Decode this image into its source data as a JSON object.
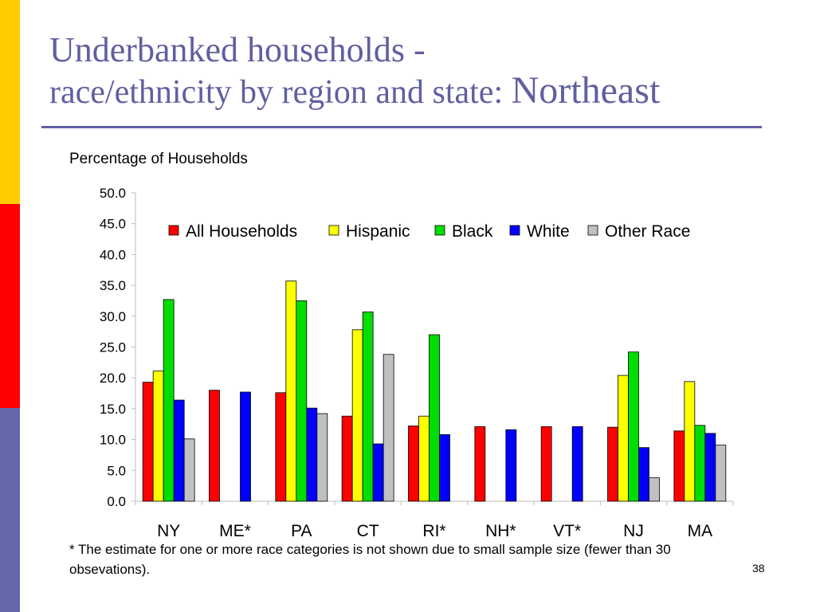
{
  "slide": {
    "title_line1": "Underbanked households -",
    "title_line2a": "race/ethnicity by region and state: ",
    "title_line2b": "Northeast",
    "footnote": "* The estimate for one or more race categories is not shown due to small sample size (fewer than 30 obsevations).",
    "page_number": "38"
  },
  "colors": {
    "accent_bar_top": "#FFCC00",
    "accent_bar_mid": "#FF0000",
    "accent_bar_bottom": "#6666AA",
    "title": "#5F5FA0"
  },
  "chart_data": {
    "type": "bar",
    "ylabel": "Percentage of Households",
    "ylim": [
      0,
      50
    ],
    "yticks": [
      "0.0",
      "5.0",
      "10.0",
      "15.0",
      "20.0",
      "25.0",
      "30.0",
      "35.0",
      "40.0",
      "45.0",
      "50.0"
    ],
    "categories": [
      "NY",
      "ME*",
      "PA",
      "CT",
      "RI*",
      "NH*",
      "VT*",
      "NJ",
      "MA"
    ],
    "legend_position": "top",
    "grid": false,
    "series": [
      {
        "name": "All Households",
        "color": "#FF0000",
        "values": [
          19.3,
          18.0,
          17.6,
          13.8,
          12.2,
          12.1,
          12.1,
          12.0,
          11.4
        ]
      },
      {
        "name": "Hispanic",
        "color": "#FFFF00",
        "values": [
          21.1,
          null,
          35.7,
          27.8,
          13.8,
          null,
          null,
          20.4,
          19.4
        ]
      },
      {
        "name": "Black",
        "color": "#00DD00",
        "values": [
          32.7,
          null,
          32.5,
          30.7,
          27.0,
          null,
          null,
          24.2,
          12.3
        ]
      },
      {
        "name": "White",
        "color": "#0000FF",
        "values": [
          16.4,
          17.7,
          15.1,
          9.3,
          10.8,
          11.6,
          12.1,
          8.7,
          11.0
        ]
      },
      {
        "name": "Other Race",
        "color": "#C0C0C0",
        "values": [
          10.1,
          null,
          14.2,
          23.8,
          null,
          null,
          null,
          3.8,
          9.1
        ]
      }
    ]
  }
}
